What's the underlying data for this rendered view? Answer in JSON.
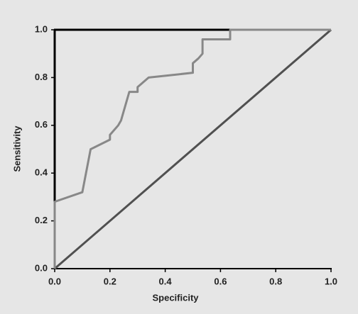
{
  "chart_data": {
    "type": "line",
    "xlabel": "Specificity",
    "ylabel": "Sensitivity",
    "xlim": [
      0,
      1
    ],
    "ylim": [
      0,
      1
    ],
    "xticks": [
      {
        "value": 0,
        "label": "0.0"
      },
      0.2,
      0.4,
      0.6,
      0.8,
      {
        "value": 1,
        "label": "1.0"
      }
    ],
    "yticks": [
      {
        "value": 0,
        "label": "0.0"
      },
      0.2,
      0.4,
      0.6,
      0.8,
      {
        "value": 1,
        "label": "1.0"
      }
    ],
    "grid": false,
    "series": [
      {
        "color": "#505050",
        "x": [
          0,
          1
        ],
        "values": [
          0,
          1
        ]
      },
      {
        "color": "#888888",
        "x": [
          0,
          0,
          0.1,
          0.13,
          0.2,
          0.2,
          0.23,
          0.24,
          0.25,
          0.27,
          0.3,
          0.3,
          0.34,
          0.5,
          0.5,
          0.52,
          0.535,
          0.535,
          0.635,
          0.635,
          1
        ],
        "values": [
          0,
          0.28,
          0.32,
          0.5,
          0.54,
          0.56,
          0.6,
          0.62,
          0.66,
          0.74,
          0.74,
          0.76,
          0.8,
          0.82,
          0.86,
          0.88,
          0.9,
          0.96,
          0.96,
          1,
          1
        ]
      }
    ]
  }
}
